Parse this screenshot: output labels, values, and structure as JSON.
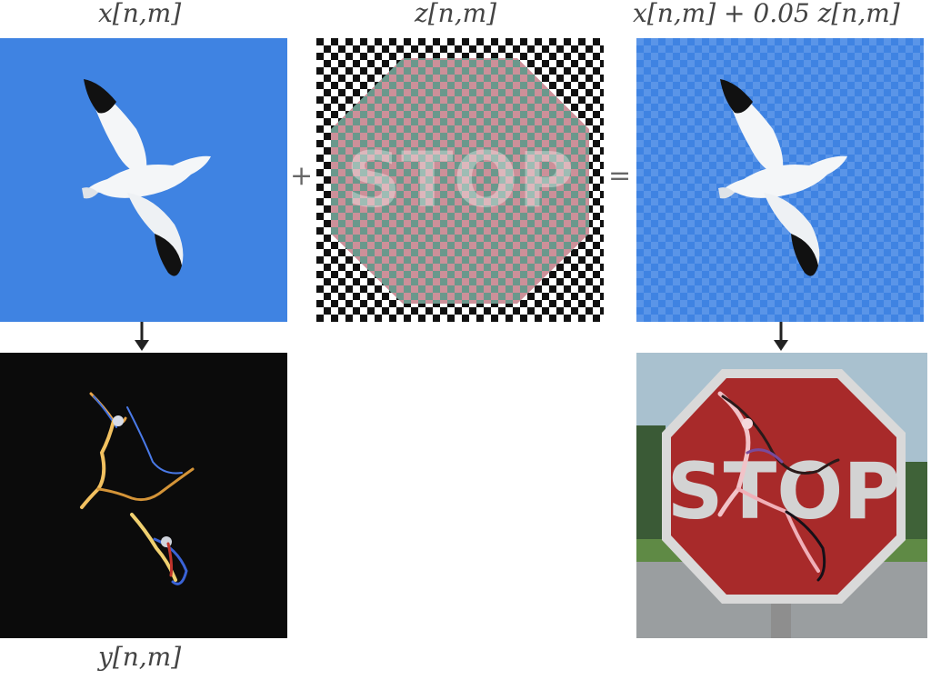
{
  "labels": {
    "x": "x[n,m]",
    "z": "z[n,m]",
    "sum": "x[n,m] + 0.05 z[n,m]",
    "y": "y[n,m]"
  },
  "operators": {
    "plus": "+",
    "equals": "="
  },
  "stop_text": "STOP",
  "colors": {
    "sky": "#3f83e2",
    "background": "#ffffff",
    "label_text": "#444444",
    "arrow": "#222222",
    "stop_sign_red": "#a82a2a",
    "perturbation_pink": "#c98a94",
    "perturbation_teal": "#6f9f93",
    "dark_output": "#0b0b0b"
  },
  "icons": [
    "goose-image",
    "stop-sign-image",
    "down-arrow-icon"
  ]
}
